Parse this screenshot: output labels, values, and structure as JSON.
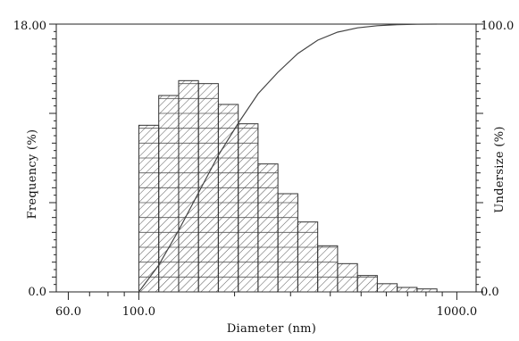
{
  "chart_data": {
    "type": "bar",
    "title": "",
    "xlabel": "Diameter (nm)",
    "ylabel": "Frequency (%)",
    "y2label": "Undersize (%)",
    "x_scale": "log",
    "xlim": [
      55,
      1150
    ],
    "ylim": [
      0,
      18
    ],
    "y2lim": [
      0,
      100
    ],
    "x_tick_labels": [
      "60.0",
      "100.0",
      "1000.0"
    ],
    "x_tick_values": [
      60,
      100,
      1000
    ],
    "y_tick_labels": [
      "0.0",
      "18.00"
    ],
    "y2_tick_labels": [
      "0.0",
      "100.0"
    ],
    "grid": false,
    "legend": "none",
    "bar_fill": "diagonal-hatch with horizontal lines",
    "bins": [
      {
        "x_start": 100.0,
        "x_end": 115.5,
        "value": 11.2
      },
      {
        "x_start": 115.5,
        "x_end": 133.4,
        "value": 13.2
      },
      {
        "x_start": 133.4,
        "x_end": 154.0,
        "value": 14.2
      },
      {
        "x_start": 154.0,
        "x_end": 177.8,
        "value": 14.0
      },
      {
        "x_start": 177.8,
        "x_end": 205.4,
        "value": 12.6
      },
      {
        "x_start": 205.4,
        "x_end": 237.1,
        "value": 11.3
      },
      {
        "x_start": 237.1,
        "x_end": 273.8,
        "value": 8.6
      },
      {
        "x_start": 273.8,
        "x_end": 316.2,
        "value": 6.6
      },
      {
        "x_start": 316.2,
        "x_end": 365.2,
        "value": 4.7
      },
      {
        "x_start": 365.2,
        "x_end": 421.7,
        "value": 3.1
      },
      {
        "x_start": 421.7,
        "x_end": 487.0,
        "value": 1.9
      },
      {
        "x_start": 487.0,
        "x_end": 562.3,
        "value": 1.1
      },
      {
        "x_start": 562.3,
        "x_end": 649.4,
        "value": 0.55
      },
      {
        "x_start": 649.4,
        "x_end": 749.9,
        "value": 0.3
      },
      {
        "x_start": 749.9,
        "x_end": 866.0,
        "value": 0.2
      }
    ],
    "undersize_curve": {
      "x": [
        100,
        115.5,
        133.4,
        154.0,
        177.8,
        205.4,
        237.1,
        273.8,
        316.2,
        365.2,
        421.7,
        487.0,
        562.3,
        649.4,
        749.9,
        866.0
      ],
      "y": [
        0,
        10,
        23,
        37,
        51,
        63,
        74,
        82,
        89,
        94,
        97,
        98.6,
        99.4,
        99.8,
        99.95,
        100
      ]
    },
    "colors": {
      "axes": "#222222",
      "bar_stroke": "#333333",
      "hatch": "#555555",
      "curve": "#444444"
    }
  }
}
